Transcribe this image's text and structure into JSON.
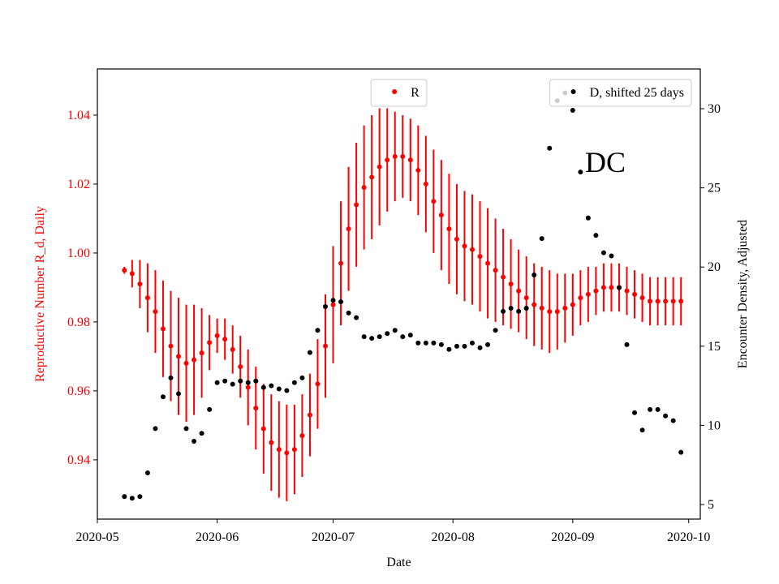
{
  "chart_data": {
    "type": "errorbar_scatter",
    "annotations": [
      {
        "text": "DC"
      }
    ],
    "xlabel": "Date",
    "ylabel": "Reproductive Number R_d, Daily",
    "y2label": "Encounter Density, Adjusted",
    "x": [
      "2020-05-08",
      "2020-05-10",
      "2020-05-12",
      "2020-05-14",
      "2020-05-16",
      "2020-05-18",
      "2020-05-20",
      "2020-05-22",
      "2020-05-24",
      "2020-05-26",
      "2020-05-28",
      "2020-05-30",
      "2020-06-01",
      "2020-06-03",
      "2020-06-05",
      "2020-06-07",
      "2020-06-09",
      "2020-06-11",
      "2020-06-13",
      "2020-06-15",
      "2020-06-17",
      "2020-06-19",
      "2020-06-21",
      "2020-06-23",
      "2020-06-25",
      "2020-06-27",
      "2020-06-29",
      "2020-07-01",
      "2020-07-03",
      "2020-07-05",
      "2020-07-07",
      "2020-07-09",
      "2020-07-11",
      "2020-07-13",
      "2020-07-15",
      "2020-07-17",
      "2020-07-19",
      "2020-07-21",
      "2020-07-23",
      "2020-07-25",
      "2020-07-27",
      "2020-07-29",
      "2020-07-31",
      "2020-08-02",
      "2020-08-04",
      "2020-08-06",
      "2020-08-08",
      "2020-08-10",
      "2020-08-12",
      "2020-08-14",
      "2020-08-16",
      "2020-08-18",
      "2020-08-20",
      "2020-08-22",
      "2020-08-24",
      "2020-08-26",
      "2020-08-28",
      "2020-08-30",
      "2020-09-01",
      "2020-09-03",
      "2020-09-05",
      "2020-09-07",
      "2020-09-09",
      "2020-09-11",
      "2020-09-13",
      "2020-09-15",
      "2020-09-17",
      "2020-09-19",
      "2020-09-21",
      "2020-09-23",
      "2020-09-25",
      "2020-09-27",
      "2020-09-29"
    ],
    "series": [
      {
        "name": "R",
        "color": "#ff0000",
        "axis": "y",
        "legend_loc": "upper center",
        "values": [
          0.995,
          0.994,
          0.991,
          0.987,
          0.983,
          0.978,
          0.973,
          0.97,
          0.968,
          0.969,
          0.971,
          0.974,
          0.976,
          0.975,
          0.972,
          0.967,
          0.961,
          0.955,
          0.949,
          0.945,
          0.943,
          0.942,
          0.943,
          0.947,
          0.953,
          0.962,
          0.973,
          0.985,
          0.997,
          1.007,
          1.014,
          1.019,
          1.022,
          1.025,
          1.027,
          1.028,
          1.028,
          1.027,
          1.024,
          1.02,
          1.015,
          1.011,
          1.007,
          1.004,
          1.002,
          1.001,
          0.999,
          0.997,
          0.995,
          0.993,
          0.991,
          0.989,
          0.987,
          0.985,
          0.984,
          0.983,
          0.983,
          0.984,
          0.985,
          0.987,
          0.988,
          0.989,
          0.99,
          0.99,
          0.99,
          0.989,
          0.988,
          0.987,
          0.986,
          0.986,
          0.986,
          0.986,
          0.986
        ],
        "errors": [
          0.001,
          0.004,
          0.007,
          0.01,
          0.012,
          0.014,
          0.016,
          0.017,
          0.017,
          0.016,
          0.013,
          0.008,
          0.005,
          0.006,
          0.007,
          0.009,
          0.011,
          0.012,
          0.013,
          0.014,
          0.014,
          0.014,
          0.013,
          0.012,
          0.012,
          0.013,
          0.015,
          0.017,
          0.018,
          0.018,
          0.018,
          0.018,
          0.018,
          0.017,
          0.015,
          0.013,
          0.012,
          0.012,
          0.013,
          0.014,
          0.015,
          0.016,
          0.016,
          0.016,
          0.016,
          0.016,
          0.016,
          0.016,
          0.015,
          0.014,
          0.013,
          0.012,
          0.012,
          0.012,
          0.012,
          0.012,
          0.011,
          0.01,
          0.009,
          0.008,
          0.008,
          0.007,
          0.007,
          0.007,
          0.007,
          0.007,
          0.007,
          0.007,
          0.007,
          0.007,
          0.007,
          0.007,
          0.007
        ]
      },
      {
        "name": "D, shifted 25 days",
        "color": "#000000",
        "axis": "y2",
        "legend_loc": "upper right",
        "values": [
          5.5,
          5.4,
          5.5,
          7.0,
          9.8,
          11.8,
          13.0,
          12.0,
          9.8,
          9.0,
          9.5,
          11.0,
          12.7,
          12.8,
          12.6,
          12.8,
          12.7,
          12.8,
          12.4,
          12.5,
          12.3,
          12.2,
          12.7,
          13.0,
          14.6,
          16.0,
          17.5,
          17.9,
          17.8,
          17.1,
          16.8,
          15.6,
          15.5,
          15.6,
          15.8,
          16.0,
          15.6,
          15.7,
          15.2,
          15.2,
          15.2,
          15.1,
          14.8,
          15.0,
          15.0,
          15.2,
          14.9,
          15.1,
          16.0,
          17.2,
          17.4,
          17.2,
          17.4,
          19.5,
          21.8,
          27.5,
          30.5,
          31.0,
          29.9,
          26.0,
          23.1,
          22.0,
          20.9,
          20.7,
          18.7,
          15.1,
          10.8,
          9.7,
          11.0,
          11.0,
          10.6,
          10.3,
          8.3
        ]
      }
    ],
    "xlim": [
      "2020-05-01",
      "2020-10-04"
    ],
    "xticks": [
      {
        "value": "2020-05-01",
        "label": "2020-05"
      },
      {
        "value": "2020-06-01",
        "label": "2020-06"
      },
      {
        "value": "2020-07-01",
        "label": "2020-07"
      },
      {
        "value": "2020-08-01",
        "label": "2020-08"
      },
      {
        "value": "2020-09-01",
        "label": "2020-09"
      },
      {
        "value": "2020-10-01",
        "label": "2020-10"
      }
    ],
    "ylim": [
      0.9228,
      1.0534
    ],
    "yticks": [
      0.94,
      0.96,
      0.98,
      {
        "value": 1,
        "label": "1.00"
      },
      1.02,
      1.04
    ],
    "y2lim": [
      4.08,
      32.51
    ],
    "y2ticks": [
      5,
      10,
      15,
      20,
      25,
      30
    ],
    "ycolor": "#ff0000",
    "grid": false
  }
}
